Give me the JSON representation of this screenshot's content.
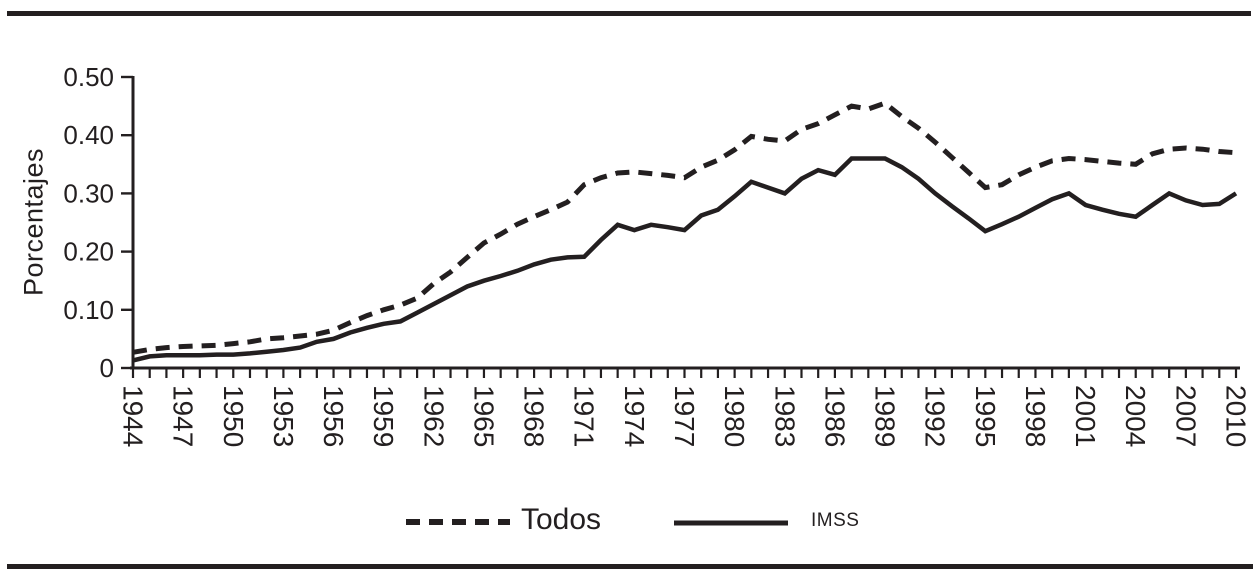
{
  "page": {
    "background": "#ffffff",
    "rule_color": "#231f20"
  },
  "chart_data": {
    "type": "line",
    "title": "",
    "xlabel": "",
    "ylabel": "Porcentajes",
    "ylim": [
      0,
      0.5
    ],
    "grid": false,
    "legend_position": "bottom-center",
    "line_color": "#231f20",
    "x_start": 1944,
    "x_end": 2010,
    "x_tick_interval": 1,
    "x_label_interval": 3,
    "x_tick_labels": [
      "1944",
      "1947",
      "1950",
      "1953",
      "1956",
      "1959",
      "1962",
      "1965",
      "1968",
      "1971",
      "1974",
      "1977",
      "1980",
      "1983",
      "1986",
      "1989",
      "1992",
      "1995",
      "1998",
      "2001",
      "2004",
      "2007",
      "2010"
    ],
    "yticks": [
      {
        "value": 0.5,
        "label": "0.50"
      },
      {
        "value": 0.4,
        "label": "0.40"
      },
      {
        "value": 0.3,
        "label": "0.30"
      },
      {
        "value": 0.2,
        "label": "0.20"
      },
      {
        "value": 0.1,
        "label": "0.10"
      },
      {
        "value": 0.0,
        "label": "0"
      }
    ],
    "legend": [
      {
        "name": "Todos",
        "style": "dashed"
      },
      {
        "name": "IMSS",
        "style": "solid"
      }
    ],
    "series": [
      {
        "name": "Todos",
        "style": "dashed",
        "values": [
          0.027,
          0.032,
          0.035,
          0.037,
          0.038,
          0.039,
          0.042,
          0.045,
          0.05,
          0.052,
          0.055,
          0.058,
          0.065,
          0.078,
          0.09,
          0.1,
          0.108,
          0.12,
          0.145,
          0.165,
          0.19,
          0.215,
          0.23,
          0.247,
          0.26,
          0.272,
          0.285,
          0.315,
          0.327,
          0.335,
          0.337,
          0.334,
          0.331,
          0.327,
          0.345,
          0.357,
          0.375,
          0.398,
          0.393,
          0.39,
          0.41,
          0.42,
          0.435,
          0.45,
          0.445,
          0.455,
          0.432,
          0.412,
          0.388,
          0.362,
          0.336,
          0.31,
          0.315,
          0.332,
          0.345,
          0.356,
          0.36,
          0.358,
          0.355,
          0.352,
          0.35,
          0.368,
          0.376,
          0.378,
          0.376,
          0.372,
          0.37
        ]
      },
      {
        "name": "IMSS",
        "style": "solid",
        "values": [
          0.013,
          0.02,
          0.022,
          0.022,
          0.022,
          0.023,
          0.023,
          0.025,
          0.028,
          0.031,
          0.035,
          0.045,
          0.05,
          0.061,
          0.069,
          0.076,
          0.08,
          0.095,
          0.11,
          0.125,
          0.14,
          0.15,
          0.158,
          0.167,
          0.178,
          0.186,
          0.19,
          0.191,
          0.22,
          0.246,
          0.237,
          0.246,
          0.242,
          0.237,
          0.262,
          0.272,
          0.295,
          0.32,
          0.31,
          0.3,
          0.325,
          0.34,
          0.332,
          0.36,
          0.36,
          0.36,
          0.345,
          0.325,
          0.3,
          0.278,
          0.257,
          0.235,
          0.247,
          0.26,
          0.275,
          0.29,
          0.3,
          0.28,
          0.272,
          0.265,
          0.26,
          0.28,
          0.3,
          0.288,
          0.28,
          0.282,
          0.3
        ]
      }
    ]
  }
}
